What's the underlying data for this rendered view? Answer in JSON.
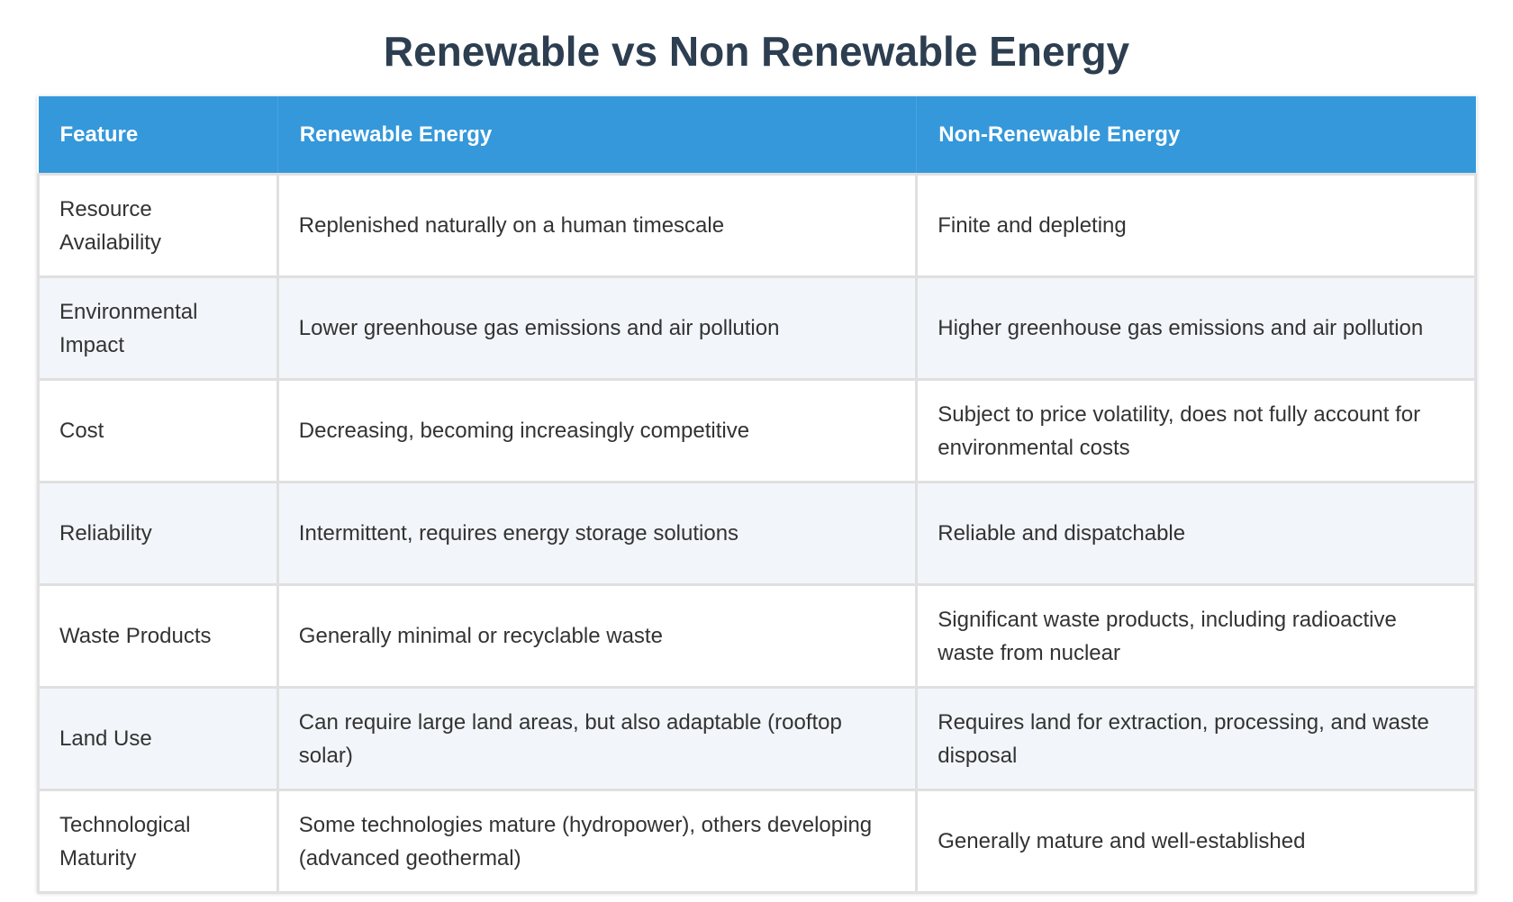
{
  "title": "Renewable vs Non Renewable Energy",
  "table": {
    "header": [
      "Feature",
      "Renewable Energy",
      "Non-Renewable Energy"
    ],
    "rows": [
      [
        "Resource Availability",
        "Replenished naturally on a human timescale",
        "Finite and depleting"
      ],
      [
        "Environmental Impact",
        "Lower greenhouse gas emissions and air pollution",
        "Higher greenhouse gas emissions and air pollution"
      ],
      [
        "Cost",
        "Decreasing, becoming increasingly competitive",
        "Subject to price volatility, does not fully account for environmental costs"
      ],
      [
        "Reliability",
        "Intermittent, requires energy storage solutions",
        "Reliable and dispatchable"
      ],
      [
        "Waste Products",
        "Generally minimal or recyclable waste",
        "Significant waste products, including radioactive waste from nuclear"
      ],
      [
        "Land Use",
        "Can require large land areas, but also adaptable (rooftop solar)",
        "Requires land for extraction, processing, and waste disposal"
      ],
      [
        "Technological Maturity",
        "Some technologies mature (hydropower), others developing (advanced geothermal)",
        "Generally mature and well-established"
      ]
    ]
  }
}
